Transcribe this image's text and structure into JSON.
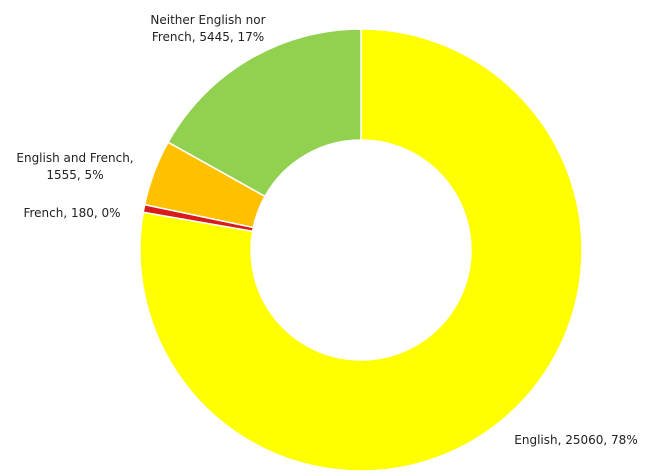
{
  "chart_data": {
    "type": "donut",
    "values": [
      25060,
      180,
      1555,
      5445
    ],
    "value_labels": [
      "English, 25060, 78%",
      "French, 180, 0%",
      "English and French, 1555, 5%",
      "Neither English nor French, 5445, 17%"
    ],
    "colors": [
      "#ffff00",
      "#d81b1b",
      "#ffc000",
      "#92d050"
    ]
  }
}
